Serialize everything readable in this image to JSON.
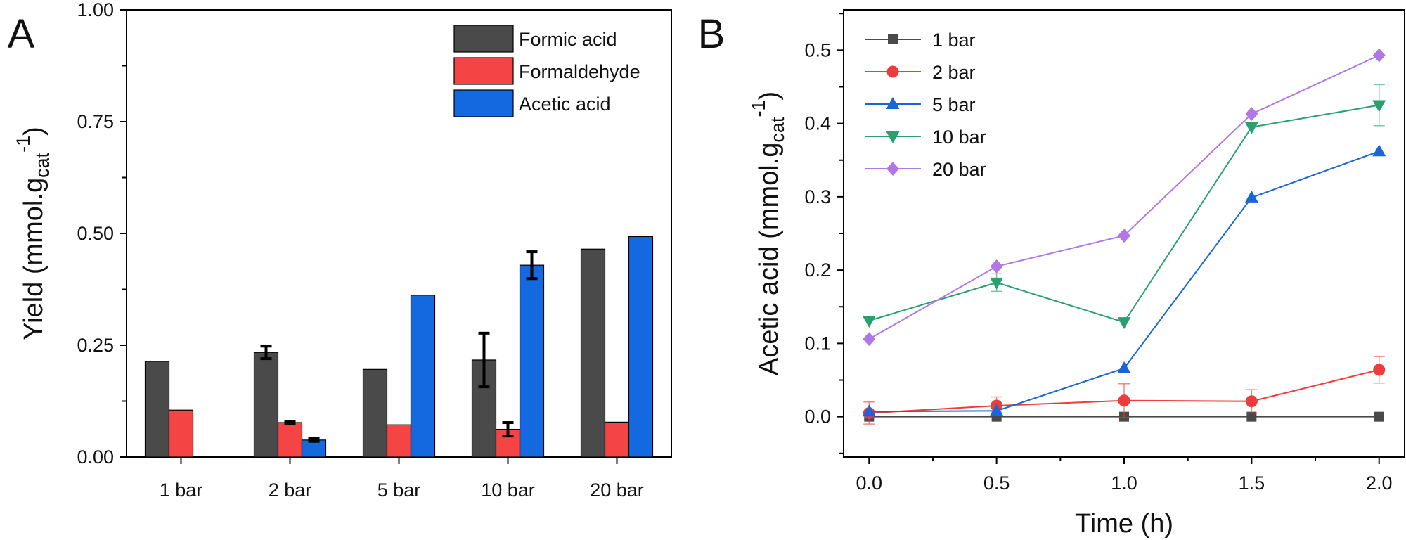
{
  "chart_data": [
    {
      "panel_label": "A",
      "type": "bar",
      "categories": [
        "1 bar",
        "2 bar",
        "5 bar",
        "10 bar",
        "20 bar"
      ],
      "series": [
        {
          "name": "Formic acid",
          "values": [
            0.214,
            0.234,
            0.196,
            0.217,
            0.465
          ],
          "errors": [
            0,
            0.014,
            0,
            0.06,
            0
          ],
          "color": "#4a4a4a"
        },
        {
          "name": "Formaldehyde",
          "values": [
            0.105,
            0.077,
            0.072,
            0.062,
            0.078
          ],
          "errors": [
            0,
            0.003,
            0,
            0.015,
            0
          ],
          "color": "#f44444"
        },
        {
          "name": "Acetic acid",
          "values": [
            0,
            0.038,
            0.362,
            0.429,
            0.493
          ],
          "errors": [
            0,
            0.003,
            0,
            0.03,
            0
          ],
          "color": "#1468e0"
        }
      ],
      "ylim": [
        0,
        1.0
      ],
      "yticks": [
        "0.00",
        "0.25",
        "0.50",
        "0.75",
        "1.00"
      ],
      "ylabel": "Yield (mmol.g",
      "ylabel_sub": "cat",
      "ylabel_sup": "-1",
      "ylabel_close": ")",
      "xlabel": "",
      "legend_position": "top-right",
      "grid": false
    },
    {
      "panel_label": "B",
      "type": "line",
      "x": [
        0.0,
        0.5,
        1.0,
        1.5,
        2.0
      ],
      "xticks": [
        "0.0",
        "0.5",
        "1.0",
        "1.5",
        "2.0"
      ],
      "xlim": [
        -0.1,
        2.1
      ],
      "ylim": [
        -0.055,
        0.555
      ],
      "yticks": [
        "0.0",
        "0.1",
        "0.2",
        "0.3",
        "0.4",
        "0.5"
      ],
      "xlabel": "Time (h)",
      "ylabel": "Acetic acid (mmol.g",
      "ylabel_sub": "cat",
      "ylabel_sup": "-1",
      "ylabel_close": ")",
      "legend_position": "top-left",
      "grid": false,
      "series": [
        {
          "name": "1 bar",
          "marker": "square",
          "color": "#4a4a4a",
          "values": [
            0,
            0,
            0,
            0,
            0
          ],
          "errors": [
            0,
            0,
            0,
            0,
            0
          ]
        },
        {
          "name": "2 bar",
          "marker": "circle",
          "color": "#ee3b3b",
          "values": [
            0.005,
            0.015,
            0.022,
            0.021,
            0.064
          ],
          "errors": [
            0.015,
            0.012,
            0.023,
            0.016,
            0.018
          ]
        },
        {
          "name": "5 bar",
          "marker": "triangle-up",
          "color": "#1a66d8",
          "values": [
            0.007,
            0.008,
            0.066,
            0.299,
            0.362
          ],
          "errors": [
            0,
            0,
            0,
            0,
            0
          ]
        },
        {
          "name": "10 bar",
          "marker": "triangle-down",
          "color": "#2aa070",
          "values": [
            0.131,
            0.183,
            0.129,
            0.395,
            0.425
          ],
          "errors": [
            0,
            0.012,
            0,
            0,
            0.028
          ]
        },
        {
          "name": "20 bar",
          "marker": "diamond",
          "color": "#b277e6",
          "values": [
            0.106,
            0.205,
            0.247,
            0.413,
            0.493
          ],
          "errors": [
            0,
            0,
            0,
            0,
            0
          ]
        }
      ]
    }
  ]
}
